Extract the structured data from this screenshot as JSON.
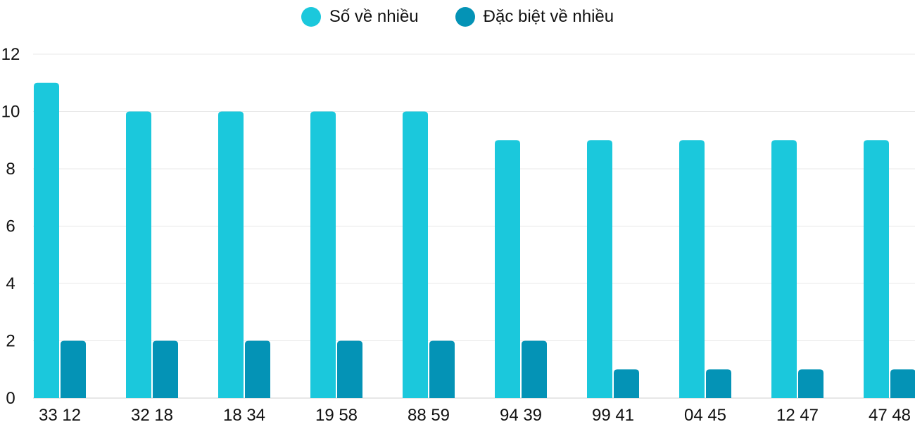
{
  "chart_data": {
    "type": "bar",
    "categories": [
      "33 12",
      "32 18",
      "18 34",
      "19 58",
      "88 59",
      "94 39",
      "99 41",
      "04 45",
      "12 47",
      "47 48"
    ],
    "series": [
      {
        "name": "Số về nhiều",
        "color": "#1bc8dc",
        "values": [
          11,
          10,
          10,
          10,
          10,
          9,
          9,
          9,
          9,
          9
        ]
      },
      {
        "name": "Đặc biệt về nhiều",
        "color": "#0493b6",
        "values": [
          2,
          2,
          2,
          2,
          2,
          2,
          1,
          1,
          1,
          1
        ]
      }
    ],
    "ylim": [
      0,
      12
    ],
    "yticks": [
      0,
      2,
      4,
      6,
      8,
      10,
      12
    ],
    "grid": true,
    "legend": "top-center"
  }
}
